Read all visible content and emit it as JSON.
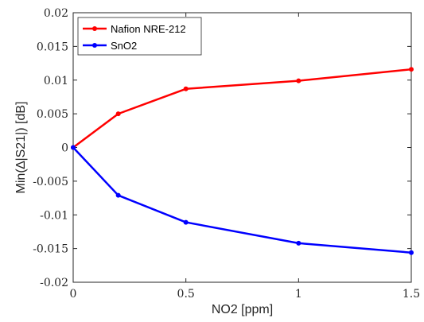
{
  "chart_data": {
    "type": "line",
    "x": [
      0,
      0.2,
      0.5,
      1,
      1.5
    ],
    "series": [
      {
        "name": "Nafion NRE-212",
        "color": "#ff0000",
        "values": [
          0,
          0.005,
          0.0087,
          0.0099,
          0.0116
        ]
      },
      {
        "name": "SnO2",
        "color": "#0000ff",
        "values": [
          0,
          -0.0071,
          -0.0111,
          -0.0142,
          -0.0156
        ]
      }
    ],
    "xlabel": "NO2 [ppm]",
    "ylabel": "Min(∆|S21|) [dB]",
    "xlim": [
      0,
      1.5
    ],
    "ylim": [
      -0.02,
      0.02
    ],
    "xticks": [
      "0",
      "0.5",
      "1",
      "1.5"
    ],
    "yticks": [
      "-0.02",
      "-0.015",
      "-0.01",
      "-0.005",
      "0",
      "0.005",
      "0.01",
      "0.015",
      "0.02"
    ],
    "grid": false,
    "legend_position": "top-left"
  }
}
